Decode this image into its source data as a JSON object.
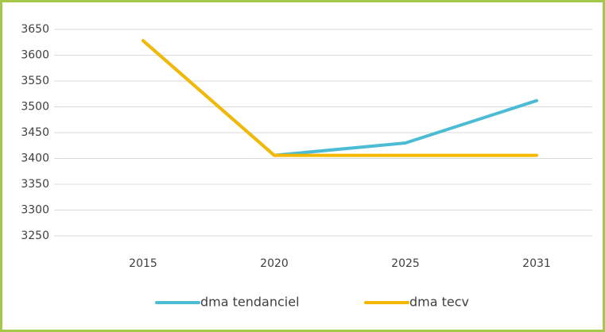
{
  "chart_data": {
    "type": "line",
    "categories": [
      "2015",
      "2020",
      "2025",
      "2031"
    ],
    "series": [
      {
        "name": "dma tendanciel",
        "color": "#4bbcd4",
        "values": [
          3628,
          3406,
          3430,
          3512
        ]
      },
      {
        "name": "dma tecv",
        "color": "#f5b800",
        "values": [
          3628,
          3406,
          3406,
          3406
        ]
      }
    ],
    "ylim": [
      3250,
      3650
    ],
    "yticks": [
      3250,
      3300,
      3350,
      3400,
      3450,
      3500,
      3550,
      3600,
      3650
    ],
    "grid": true,
    "legend": "bottom"
  }
}
